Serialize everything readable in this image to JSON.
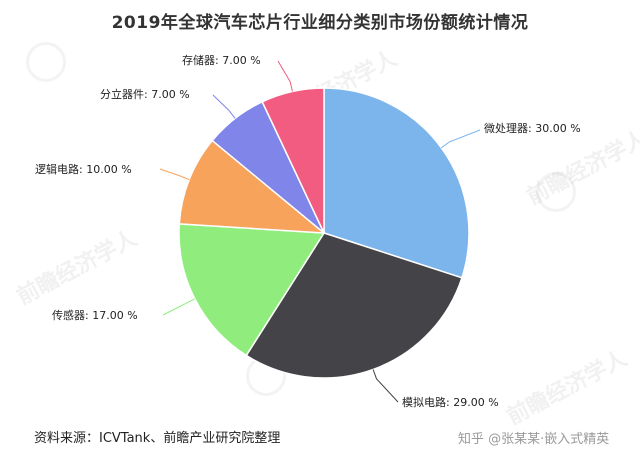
{
  "chart_data": {
    "type": "pie",
    "title": "2019年全球汽车芯片行业细分类别市场份额统计情况",
    "start_angle_deg": 0,
    "direction": "clockwise",
    "slices": [
      {
        "name": "微处理器",
        "value": 30.0,
        "label": "微处理器: 30.00 %",
        "color": "#7cb5ec"
      },
      {
        "name": "模拟电路",
        "value": 29.0,
        "label": "模拟电路: 29.00 %",
        "color": "#434348"
      },
      {
        "name": "传感器",
        "value": 17.0,
        "label": "传感器: 17.00 %",
        "color": "#90ed7d"
      },
      {
        "name": "逻辑电路",
        "value": 10.0,
        "label": "逻辑电路: 10.00 %",
        "color": "#f7a35c"
      },
      {
        "name": "分立器件",
        "value": 7.0,
        "label": "分立器件: 7.00 %",
        "color": "#8085e9"
      },
      {
        "name": "存储器",
        "value": 7.0,
        "label": "存储器: 7.00 %",
        "color": "#f15c80"
      }
    ]
  },
  "footer": {
    "source": "资料来源：ICVTank、前瞻产业研究院整理",
    "credit": "知乎 @张某某·嵌入式精英"
  },
  "watermark": {
    "text": "前瞻经济学人"
  }
}
